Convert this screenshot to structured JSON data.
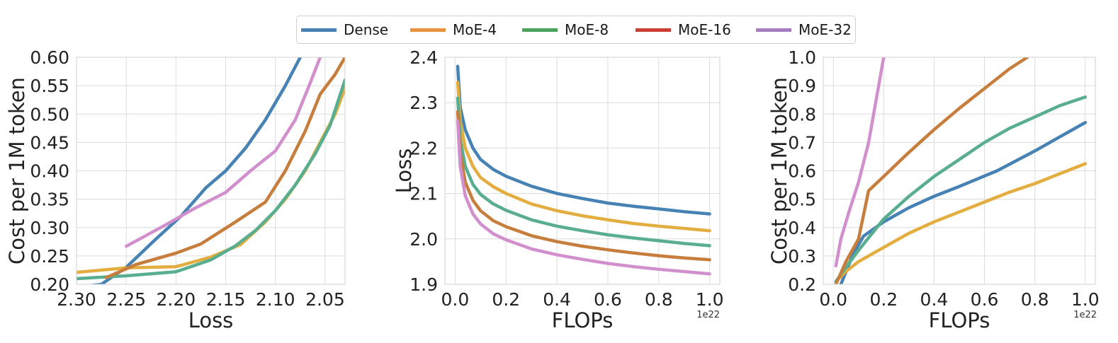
{
  "legend": {
    "items": [
      {
        "name": "Dense",
        "color": "#4682b4"
      },
      {
        "name": "MoE-4",
        "color": "#e8913a"
      },
      {
        "name": "MoE-8",
        "color": "#4aa35a"
      },
      {
        "name": "MoE-16",
        "color": "#cc3d32"
      },
      {
        "name": "MoE-32",
        "color": "#a77bbf"
      }
    ]
  },
  "chart_data": [
    {
      "type": "line",
      "xlabel": "Loss",
      "ylabel": "Cost per 1M token",
      "xlim": [
        2.3,
        2.03
      ],
      "ylim": [
        0.2,
        0.6
      ],
      "xticks": [
        "2.30",
        "2.25",
        "2.20",
        "2.15",
        "2.10",
        "2.05"
      ],
      "xtick_values": [
        2.3,
        2.25,
        2.2,
        2.15,
        2.1,
        2.05
      ],
      "yticks": [
        "0.20",
        "0.25",
        "0.30",
        "0.35",
        "0.40",
        "0.45",
        "0.50",
        "0.55",
        "0.60"
      ],
      "ytick_values": [
        0.2,
        0.25,
        0.3,
        0.35,
        0.4,
        0.45,
        0.5,
        0.55,
        0.6
      ],
      "grid": true,
      "series": [
        {
          "name": "Dense",
          "color": "#4682b4",
          "x": [
            2.29,
            2.275,
            2.25,
            2.22,
            2.195,
            2.17,
            2.15,
            2.13,
            2.11,
            2.09,
            2.075
          ],
          "y": [
            0.197,
            0.2,
            0.23,
            0.28,
            0.32,
            0.37,
            0.4,
            0.44,
            0.49,
            0.55,
            0.6
          ]
        },
        {
          "name": "MoE-4",
          "color": "#e3ad3f",
          "x": [
            2.3,
            2.25,
            2.2,
            2.165,
            2.135,
            2.11,
            2.09,
            2.07,
            2.055,
            2.04,
            2.03
          ],
          "y": [
            0.221,
            0.229,
            0.231,
            0.248,
            0.27,
            0.31,
            0.35,
            0.4,
            0.45,
            0.5,
            0.545
          ]
        },
        {
          "name": "MoE-8",
          "color": "#58ae8e",
          "x": [
            2.3,
            2.25,
            2.2,
            2.165,
            2.14,
            2.12,
            2.1,
            2.08,
            2.06,
            2.045,
            2.03
          ],
          "y": [
            0.21,
            0.215,
            0.222,
            0.243,
            0.268,
            0.295,
            0.33,
            0.375,
            0.43,
            0.48,
            0.56
          ]
        },
        {
          "name": "MoE-16",
          "color": "#c77d3c",
          "x": [
            2.27,
            2.24,
            2.2,
            2.175,
            2.14,
            2.11,
            2.09,
            2.07,
            2.055,
            2.04,
            2.03
          ],
          "y": [
            0.212,
            0.235,
            0.255,
            0.271,
            0.31,
            0.345,
            0.4,
            0.47,
            0.535,
            0.57,
            0.6
          ]
        },
        {
          "name": "MoE-32",
          "color": "#d190cd",
          "x": [
            2.25,
            2.21,
            2.18,
            2.15,
            2.125,
            2.1,
            2.08,
            2.065,
            2.055
          ],
          "y": [
            0.267,
            0.305,
            0.335,
            0.362,
            0.4,
            0.435,
            0.49,
            0.555,
            0.6
          ]
        }
      ]
    },
    {
      "type": "line",
      "xlabel": "FLOPs",
      "ylabel": "Loss",
      "offset_label": "1e22",
      "xlim": [
        -0.04,
        1.04
      ],
      "ylim": [
        1.9,
        2.4
      ],
      "xticks": [
        "0.0",
        "0.2",
        "0.4",
        "0.6",
        "0.8",
        "1.0"
      ],
      "xtick_values": [
        0.0,
        0.2,
        0.4,
        0.6,
        0.8,
        1.0
      ],
      "yticks": [
        "1.9",
        "2.0",
        "2.1",
        "2.2",
        "2.3",
        "2.4"
      ],
      "ytick_values": [
        1.9,
        2.0,
        2.1,
        2.2,
        2.3,
        2.4
      ],
      "grid": true,
      "series": [
        {
          "name": "Dense",
          "color": "#4682b4",
          "x": [
            0.01,
            0.02,
            0.04,
            0.07,
            0.1,
            0.15,
            0.2,
            0.3,
            0.4,
            0.5,
            0.6,
            0.7,
            0.8,
            0.9,
            1.0
          ],
          "y": [
            2.38,
            2.29,
            2.24,
            2.2,
            2.175,
            2.153,
            2.138,
            2.116,
            2.1,
            2.089,
            2.079,
            2.072,
            2.066,
            2.06,
            2.055
          ]
        },
        {
          "name": "MoE-4",
          "color": "#e3ad3f",
          "x": [
            0.01,
            0.02,
            0.04,
            0.07,
            0.1,
            0.15,
            0.2,
            0.3,
            0.4,
            0.5,
            0.6,
            0.7,
            0.8,
            0.9,
            1.0
          ],
          "y": [
            2.345,
            2.26,
            2.2,
            2.16,
            2.135,
            2.115,
            2.1,
            2.077,
            2.062,
            2.051,
            2.042,
            2.034,
            2.028,
            2.023,
            2.018
          ]
        },
        {
          "name": "MoE-8",
          "color": "#58ae8e",
          "x": [
            0.01,
            0.02,
            0.04,
            0.07,
            0.1,
            0.15,
            0.2,
            0.3,
            0.4,
            0.5,
            0.6,
            0.7,
            0.8,
            0.9,
            1.0
          ],
          "y": [
            2.31,
            2.22,
            2.16,
            2.12,
            2.098,
            2.077,
            2.063,
            2.042,
            2.028,
            2.018,
            2.009,
            2.002,
            1.996,
            1.99,
            1.985
          ]
        },
        {
          "name": "MoE-16",
          "color": "#c77d3c",
          "x": [
            0.01,
            0.02,
            0.04,
            0.07,
            0.1,
            0.15,
            0.2,
            0.3,
            0.4,
            0.5,
            0.6,
            0.7,
            0.8,
            0.9,
            1.0
          ],
          "y": [
            2.28,
            2.19,
            2.125,
            2.085,
            2.062,
            2.04,
            2.027,
            2.007,
            1.994,
            1.984,
            1.976,
            1.969,
            1.963,
            1.958,
            1.954
          ]
        },
        {
          "name": "MoE-32",
          "color": "#d190cd",
          "x": [
            0.01,
            0.02,
            0.04,
            0.07,
            0.1,
            0.15,
            0.2,
            0.3,
            0.4,
            0.5,
            0.6,
            0.7,
            0.8,
            0.9,
            1.0
          ],
          "y": [
            2.26,
            2.16,
            2.095,
            2.055,
            2.033,
            2.011,
            1.998,
            1.978,
            1.965,
            1.955,
            1.946,
            1.939,
            1.933,
            1.928,
            1.923
          ]
        }
      ]
    },
    {
      "type": "line",
      "xlabel": "FLOPs",
      "ylabel": "Cost per 1M token",
      "offset_label": "1e22",
      "xlim": [
        -0.04,
        1.04
      ],
      "ylim": [
        0.2,
        1.0
      ],
      "xticks": [
        "0.0",
        "0.2",
        "0.4",
        "0.6",
        "0.8",
        "1.0"
      ],
      "xtick_values": [
        0.0,
        0.2,
        0.4,
        0.6,
        0.8,
        1.0
      ],
      "yticks": [
        "0.2",
        "0.3",
        "0.4",
        "0.5",
        "0.6",
        "0.7",
        "0.8",
        "0.9",
        "1.0"
      ],
      "ytick_values": [
        0.2,
        0.3,
        0.4,
        0.5,
        0.6,
        0.7,
        0.8,
        0.9,
        1.0
      ],
      "grid": true,
      "series": [
        {
          "name": "Dense",
          "color": "#4682b4",
          "x": [
            0.03,
            0.08,
            0.12,
            0.2,
            0.3,
            0.4,
            0.5,
            0.65,
            0.8,
            0.9,
            1.0
          ],
          "y": [
            0.2,
            0.31,
            0.37,
            0.42,
            0.47,
            0.51,
            0.545,
            0.6,
            0.67,
            0.72,
            0.77
          ]
        },
        {
          "name": "MoE-4",
          "color": "#e3ad3f",
          "x": [
            0.01,
            0.05,
            0.1,
            0.2,
            0.3,
            0.4,
            0.5,
            0.6,
            0.7,
            0.8,
            0.9,
            1.0
          ],
          "y": [
            0.21,
            0.245,
            0.28,
            0.33,
            0.38,
            0.42,
            0.455,
            0.49,
            0.525,
            0.555,
            0.59,
            0.625
          ]
        },
        {
          "name": "MoE-8",
          "color": "#58ae8e",
          "x": [
            0.01,
            0.05,
            0.1,
            0.2,
            0.3,
            0.4,
            0.5,
            0.6,
            0.7,
            0.8,
            0.9,
            1.0
          ],
          "y": [
            0.21,
            0.26,
            0.32,
            0.43,
            0.51,
            0.58,
            0.64,
            0.7,
            0.75,
            0.79,
            0.83,
            0.86
          ]
        },
        {
          "name": "MoE-16",
          "color": "#c77d3c",
          "x": [
            0.01,
            0.05,
            0.1,
            0.14,
            0.2,
            0.3,
            0.4,
            0.5,
            0.6,
            0.7,
            0.77
          ],
          "y": [
            0.2,
            0.28,
            0.36,
            0.53,
            0.58,
            0.665,
            0.745,
            0.82,
            0.89,
            0.96,
            1.0
          ]
        },
        {
          "name": "MoE-32",
          "color": "#d190cd",
          "x": [
            0.01,
            0.03,
            0.06,
            0.1,
            0.14,
            0.18,
            0.2
          ],
          "y": [
            0.265,
            0.36,
            0.45,
            0.56,
            0.7,
            0.9,
            1.0
          ]
        }
      ]
    }
  ]
}
